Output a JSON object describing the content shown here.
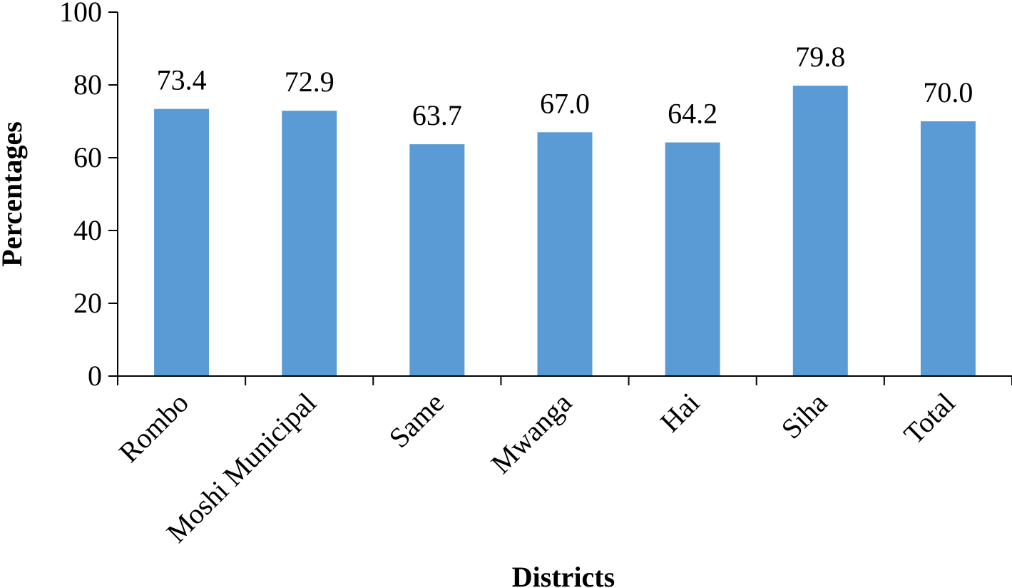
{
  "chart_data": {
    "type": "bar",
    "categories": [
      "Rombo",
      "Moshi Municipal",
      "Same",
      "Mwanga",
      "Hai",
      "Siha",
      "Total"
    ],
    "values": [
      73.4,
      72.9,
      63.7,
      67.0,
      64.2,
      79.8,
      70.0
    ],
    "value_labels": [
      "73.4",
      "72.9",
      "63.7",
      "67.0",
      "64.2",
      "79.8",
      "70.0"
    ],
    "title": "",
    "xlabel": "Districts",
    "ylabel": "Percentages",
    "ylim": [
      0,
      100
    ],
    "yticks": [
      0,
      20,
      40,
      60,
      80,
      100
    ],
    "grid": false,
    "legend": "none",
    "bar_color": "#5b9bd5"
  }
}
